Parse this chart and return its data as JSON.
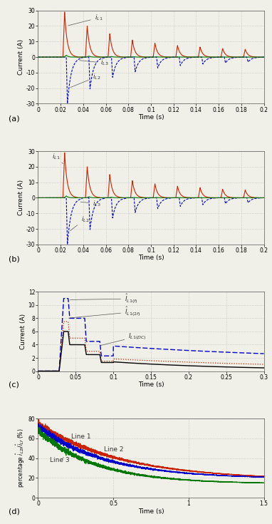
{
  "fig_bg": "#f0f0e8",
  "ax_bg": "#f0f0e8",
  "grid_color": "#c0c0c0",
  "color_red": "#cc2200",
  "color_blue": "#0000cc",
  "color_green": "#007700",
  "color_black": "#000000",
  "color_darkgray": "#333333",
  "ab_xlim": [
    0,
    0.2
  ],
  "ab_ylim": [
    -30,
    30
  ],
  "ab_xticks": [
    0,
    0.02,
    0.04,
    0.06,
    0.08,
    0.1,
    0.12,
    0.14,
    0.16,
    0.18,
    0.2
  ],
  "ab_yticks": [
    -30,
    -20,
    -10,
    0,
    10,
    20,
    30
  ],
  "c_xlim": [
    0,
    0.3
  ],
  "c_ylim": [
    0,
    12
  ],
  "c_xticks": [
    0,
    0.05,
    0.1,
    0.15,
    0.2,
    0.25,
    0.3
  ],
  "c_yticks": [
    0,
    2,
    4,
    6,
    8,
    10,
    12
  ],
  "d_xlim": [
    0,
    1.5
  ],
  "d_ylim": [
    0,
    80
  ],
  "d_xticks": [
    0,
    0.5,
    1.0,
    1.5
  ],
  "d_yticks": [
    0,
    20,
    40,
    60,
    80
  ]
}
